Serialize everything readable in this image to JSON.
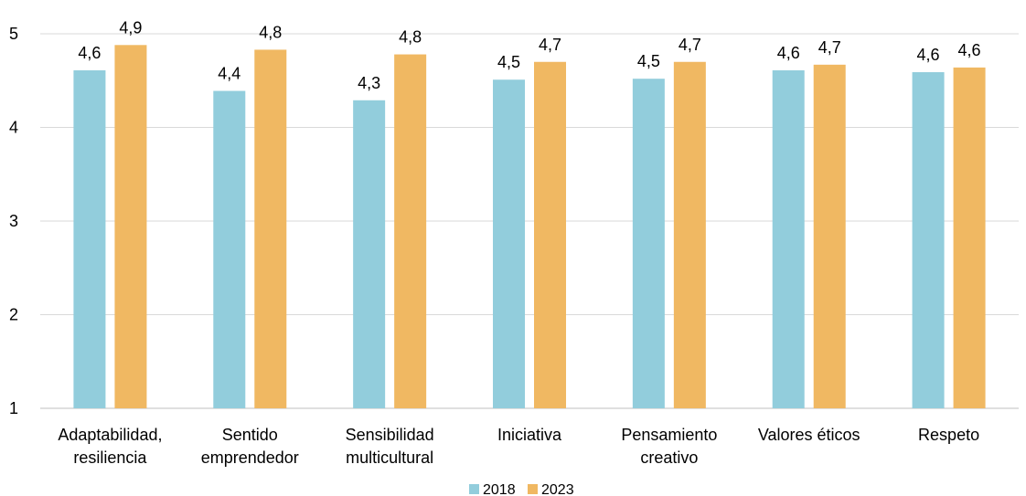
{
  "chart_data": {
    "type": "bar",
    "categories": [
      [
        "Adaptabilidad,",
        "resiliencia"
      ],
      [
        "Sentido",
        "emprendedor"
      ],
      [
        "Sensibilidad",
        "multicultural"
      ],
      [
        "Iniciativa"
      ],
      [
        "Pensamiento",
        "creativo"
      ],
      [
        "Valores éticos"
      ],
      [
        "Respeto"
      ]
    ],
    "series": [
      {
        "name": "2018",
        "color": "#92CDDC",
        "values": [
          4.61,
          4.39,
          4.29,
          4.51,
          4.52,
          4.61,
          4.59
        ],
        "labels": [
          "4,6",
          "4,4",
          "4,3",
          "4,5",
          "4,5",
          "4,6",
          "4,6"
        ]
      },
      {
        "name": "2023",
        "color": "#F0B862",
        "values": [
          4.88,
          4.83,
          4.78,
          4.7,
          4.7,
          4.67,
          4.64
        ],
        "labels": [
          "4,9",
          "4,8",
          "4,8",
          "4,7",
          "4,7",
          "4,7",
          "4,6"
        ]
      }
    ],
    "ylim": [
      1,
      5
    ],
    "yticks": [
      1,
      2,
      3,
      4,
      5
    ],
    "grid": true,
    "legend": "bottom"
  }
}
